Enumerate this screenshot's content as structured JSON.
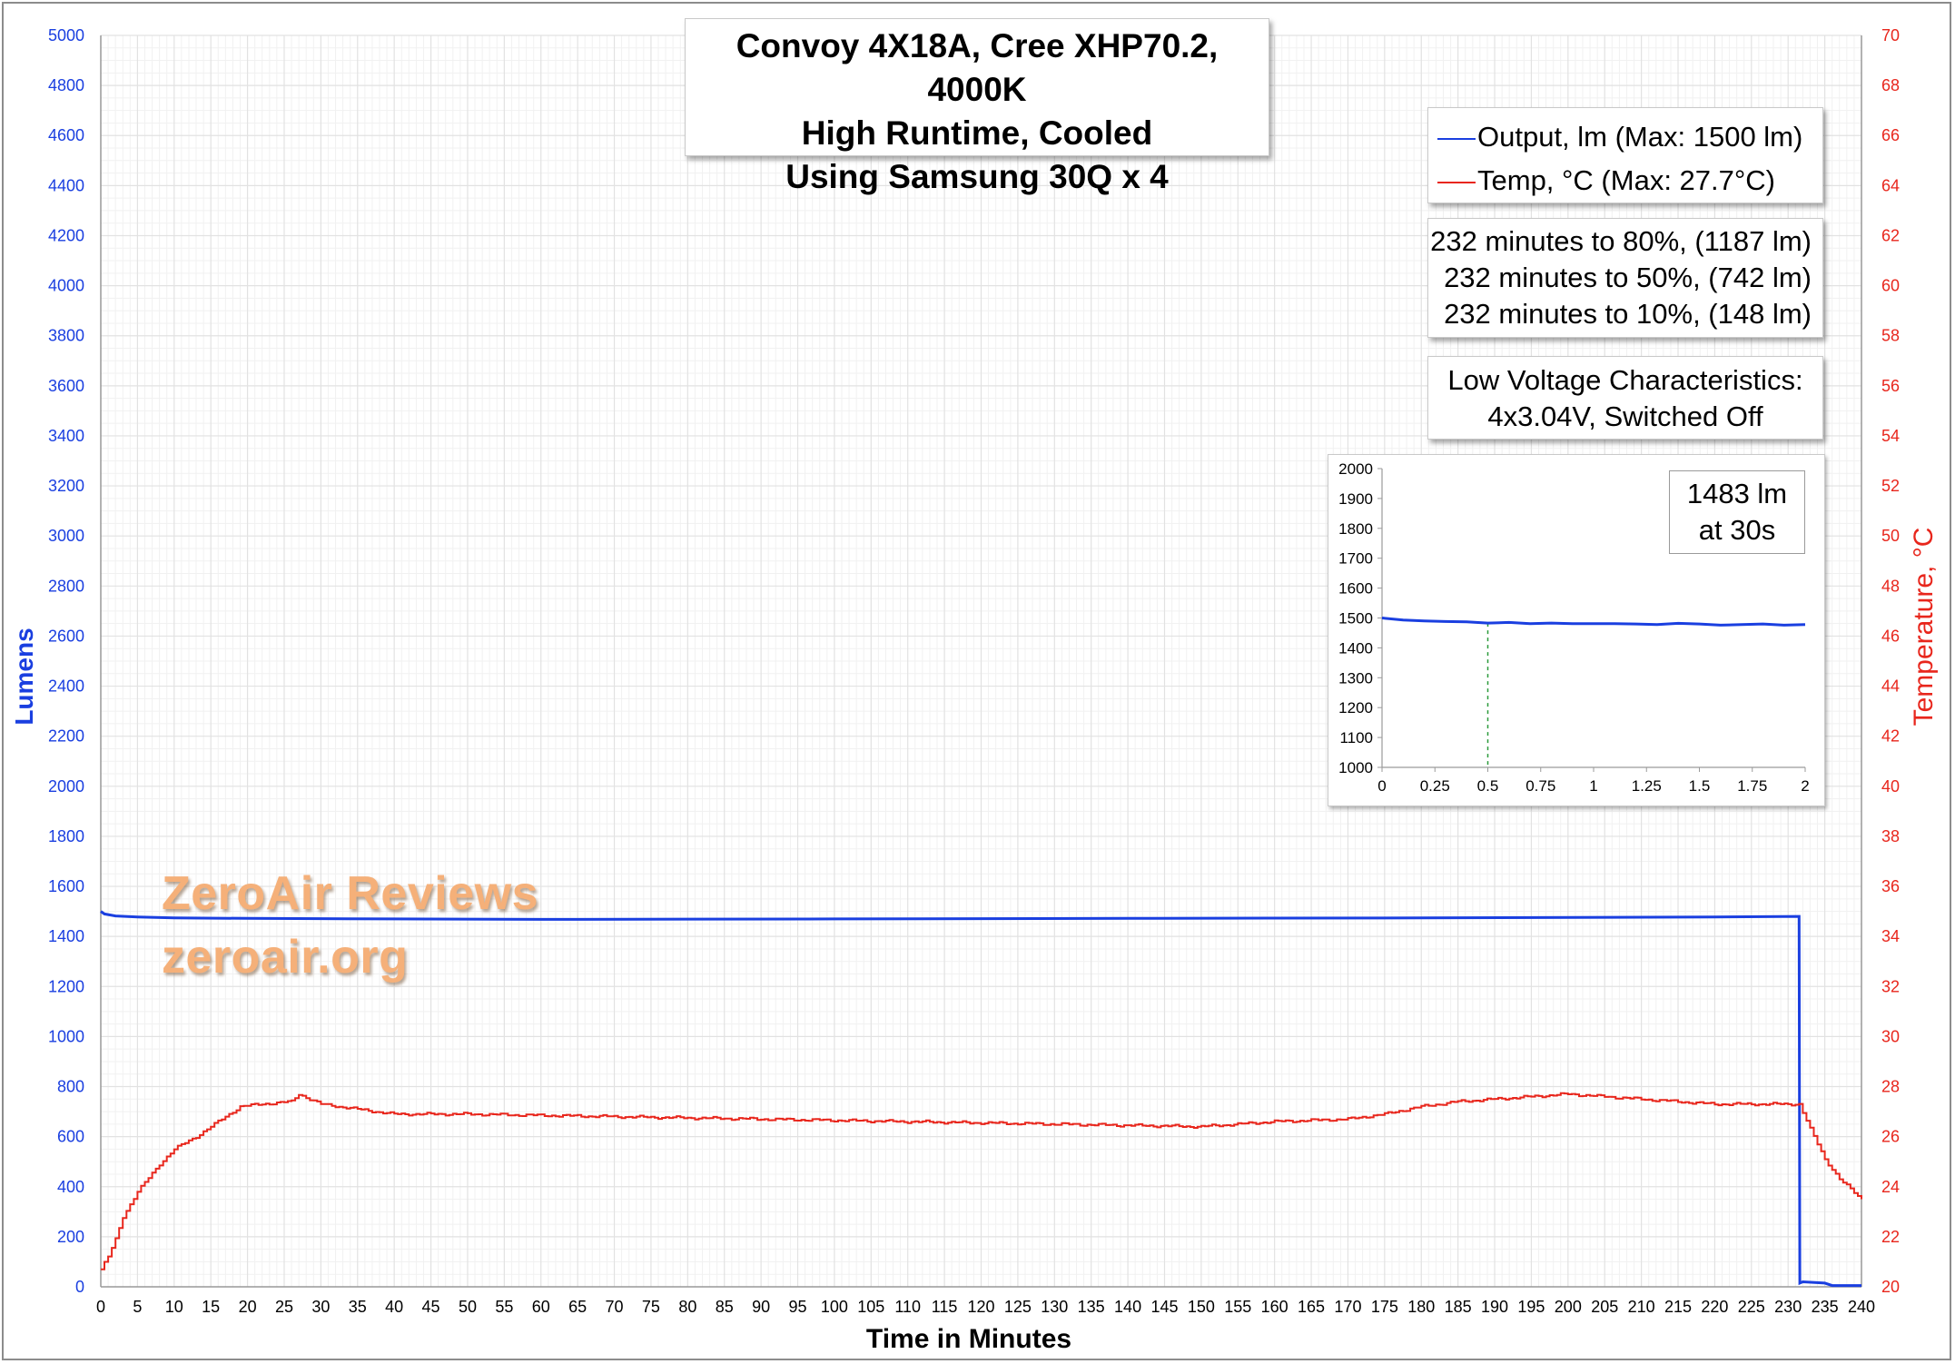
{
  "title": {
    "line1": "Convoy 4X18A, Cree XHP70.2, 4000K",
    "line2": "High Runtime, Cooled",
    "line3": "Using Samsung 30Q x 4"
  },
  "legend": {
    "output": "Output, lm (Max: 1500 lm)",
    "temp": "Temp, °C (Max: 27.7°C)"
  },
  "runtime_notes": [
    "232 minutes to 80%, (1187 lm)",
    "232 minutes to 50%, (742 lm)",
    "232 minutes to 10%, (148 lm)"
  ],
  "low_voltage": {
    "line1": "Low Voltage Characteristics:",
    "line2": "4x3.04V, Switched Off"
  },
  "inset_label": {
    "line1": "1483 lm",
    "line2": "at 30s"
  },
  "watermark": {
    "line1": "ZeroAir Reviews",
    "line2": "zeroair.org"
  },
  "colors": {
    "output": "#1a3fe0",
    "temp": "#e8261c",
    "left_axis": "#1a3fe0",
    "right_axis": "#e8261c",
    "grid": "#e2e2e2"
  },
  "chart_data": [
    {
      "type": "line",
      "title": "Convoy 4X18A, Cree XHP70.2, 4000K High Runtime, Cooled Using Samsung 30Q x 4",
      "xlabel": "Time in Minutes",
      "ylabel": "Lumens",
      "y2label": "Temperature, °C",
      "xlim": [
        0,
        240
      ],
      "ylim": [
        0,
        5000
      ],
      "y2lim": [
        20,
        70
      ],
      "xticks": [
        0,
        5,
        10,
        15,
        20,
        25,
        30,
        35,
        40,
        45,
        50,
        55,
        60,
        65,
        70,
        75,
        80,
        85,
        90,
        95,
        100,
        105,
        110,
        115,
        120,
        125,
        130,
        135,
        140,
        145,
        150,
        155,
        160,
        165,
        170,
        175,
        180,
        185,
        190,
        195,
        200,
        205,
        210,
        215,
        220,
        225,
        230,
        235,
        240
      ],
      "yticks": [
        0,
        200,
        400,
        600,
        800,
        1000,
        1200,
        1400,
        1600,
        1800,
        2000,
        2200,
        2400,
        2600,
        2800,
        3000,
        3200,
        3400,
        3600,
        3800,
        4000,
        4200,
        4400,
        4600,
        4800,
        5000
      ],
      "y2ticks": [
        20,
        22,
        24,
        26,
        28,
        30,
        32,
        34,
        36,
        38,
        40,
        42,
        44,
        46,
        48,
        50,
        52,
        54,
        56,
        58,
        60,
        62,
        64,
        66,
        68,
        70
      ],
      "grid": true,
      "legend": "top-right",
      "series": [
        {
          "name": "Output, lm (Max: 1500 lm)",
          "axis": "left",
          "x": [
            0,
            0.5,
            2,
            5,
            10,
            20,
            40,
            60,
            100,
            140,
            180,
            220,
            231.5,
            231.6,
            232,
            235,
            236,
            240
          ],
          "y": [
            1500,
            1490,
            1482,
            1478,
            1474,
            1472,
            1470,
            1468,
            1470,
            1472,
            1474,
            1478,
            1480,
            15,
            20,
            15,
            5,
            5
          ]
        },
        {
          "name": "Temp, °C (Max: 27.7°C)",
          "axis": "right",
          "x": [
            0,
            1,
            2,
            3,
            5,
            8,
            10,
            13,
            16,
            19,
            22,
            26,
            27,
            30,
            40,
            50,
            70,
            90,
            110,
            130,
            150,
            160,
            170,
            175,
            180,
            185,
            190,
            195,
            200,
            210,
            220,
            230,
            231.5,
            233,
            235,
            237,
            240
          ],
          "y": [
            20.7,
            21.2,
            21.9,
            22.8,
            23.8,
            24.9,
            25.5,
            26.0,
            26.6,
            27.2,
            27.3,
            27.4,
            27.7,
            27.3,
            26.9,
            26.9,
            26.8,
            26.7,
            26.6,
            26.5,
            26.4,
            26.6,
            26.7,
            26.9,
            27.2,
            27.4,
            27.5,
            27.6,
            27.7,
            27.5,
            27.3,
            27.3,
            27.3,
            26.3,
            25.1,
            24.3,
            23.5
          ]
        }
      ]
    },
    {
      "type": "line",
      "title": "",
      "xlim": [
        0,
        2
      ],
      "ylim": [
        1000,
        2000
      ],
      "xticks": [
        "0",
        "0.25",
        "0.5",
        "0.75",
        "1",
        "1.25",
        "1.5",
        "1.75",
        "2"
      ],
      "yticks": [
        1000,
        1100,
        1200,
        1300,
        1400,
        1500,
        1600,
        1700,
        1800,
        1900,
        2000
      ],
      "marker_x": 0.5,
      "grid": false,
      "series": [
        {
          "x": [
            0,
            0.1,
            0.2,
            0.3,
            0.4,
            0.5,
            0.6,
            0.7,
            0.8,
            0.9,
            1.0,
            1.1,
            1.2,
            1.3,
            1.4,
            1.5,
            1.6,
            1.7,
            1.8,
            1.9,
            2.0
          ],
          "y": [
            1500,
            1493,
            1490,
            1488,
            1487,
            1483,
            1485,
            1481,
            1483,
            1481,
            1481,
            1481,
            1480,
            1478,
            1482,
            1480,
            1476,
            1478,
            1480,
            1476,
            1478
          ]
        }
      ]
    }
  ]
}
